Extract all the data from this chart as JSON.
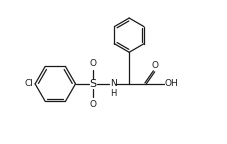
{
  "bg_color": "#ffffff",
  "line_color": "#1a1a1a",
  "line_width": 0.9,
  "font_size": 6.5,
  "fig_width": 2.27,
  "fig_height": 1.44,
  "dpi": 100,
  "xlim": [
    0,
    9.5
  ],
  "ylim": [
    0,
    6.0
  ]
}
